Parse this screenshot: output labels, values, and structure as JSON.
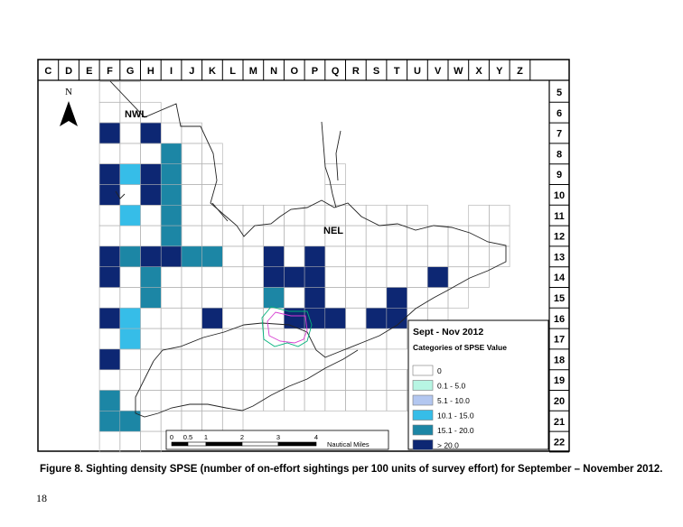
{
  "col_letters": [
    "C",
    "D",
    "E",
    "F",
    "G",
    "H",
    "I",
    "J",
    "K",
    "L",
    "M",
    "N",
    "O",
    "P",
    "Q",
    "R",
    "S",
    "T",
    "U",
    "V",
    "W",
    "X",
    "Y",
    "Z"
  ],
  "row_numbers": [
    "5",
    "6",
    "7",
    "8",
    "9",
    "10",
    "11",
    "12",
    "13",
    "14",
    "15",
    "16",
    "17",
    "18",
    "19",
    "20",
    "21",
    "22"
  ],
  "north_label": "N",
  "area_labels": {
    "nwl": "NWL",
    "nel": "NEL"
  },
  "legend": {
    "title": "Sept - Nov 2012",
    "subtitle": "Categories of SPSE Value",
    "categories": [
      {
        "label": "0",
        "color": "#ffffff"
      },
      {
        "label": "0.1 - 5.0",
        "color": "#b7f5e3"
      },
      {
        "label": "5.1 - 10.0",
        "color": "#b3c7f0"
      },
      {
        "label": "10.1 - 15.0",
        "color": "#36bde8"
      },
      {
        "label": "15.1 - 20.0",
        "color": "#1c86a5"
      },
      {
        "label": "> 20.0",
        "color": "#0d2773"
      }
    ]
  },
  "scale_bar": {
    "ticks": [
      "0",
      "0.5",
      "1",
      "2",
      "3",
      "4"
    ],
    "unit": "Nautical Miles"
  },
  "caption": "Figure 8. Sighting density SPSE (number of on-effort sightings per 100 units of survey effort) for September – November 2012.",
  "page_number": "18",
  "grid_cells": [
    {
      "col": "F",
      "row": 7,
      "cat": 5
    },
    {
      "col": "H",
      "row": 7,
      "cat": 5
    },
    {
      "col": "I",
      "row": 8,
      "cat": 4
    },
    {
      "col": "F",
      "row": 9,
      "cat": 5
    },
    {
      "col": "G",
      "row": 9,
      "cat": 3
    },
    {
      "col": "H",
      "row": 9,
      "cat": 5
    },
    {
      "col": "I",
      "row": 9,
      "cat": 4
    },
    {
      "col": "F",
      "row": 10,
      "cat": 5
    },
    {
      "col": "H",
      "row": 10,
      "cat": 5
    },
    {
      "col": "I",
      "row": 10,
      "cat": 4
    },
    {
      "col": "G",
      "row": 11,
      "cat": 3
    },
    {
      "col": "I",
      "row": 11,
      "cat": 4
    },
    {
      "col": "I",
      "row": 12,
      "cat": 4
    },
    {
      "col": "F",
      "row": 13,
      "cat": 5
    },
    {
      "col": "G",
      "row": 13,
      "cat": 4
    },
    {
      "col": "H",
      "row": 13,
      "cat": 5
    },
    {
      "col": "I",
      "row": 13,
      "cat": 5
    },
    {
      "col": "J",
      "row": 13,
      "cat": 4
    },
    {
      "col": "K",
      "row": 13,
      "cat": 4
    },
    {
      "col": "N",
      "row": 13,
      "cat": 5
    },
    {
      "col": "P",
      "row": 13,
      "cat": 5
    },
    {
      "col": "F",
      "row": 14,
      "cat": 5
    },
    {
      "col": "H",
      "row": 14,
      "cat": 4
    },
    {
      "col": "N",
      "row": 14,
      "cat": 5
    },
    {
      "col": "O",
      "row": 14,
      "cat": 5
    },
    {
      "col": "P",
      "row": 14,
      "cat": 5
    },
    {
      "col": "V",
      "row": 14,
      "cat": 5
    },
    {
      "col": "H",
      "row": 15,
      "cat": 4
    },
    {
      "col": "N",
      "row": 15,
      "cat": 4
    },
    {
      "col": "P",
      "row": 15,
      "cat": 5
    },
    {
      "col": "T",
      "row": 15,
      "cat": 5
    },
    {
      "col": "F",
      "row": 16,
      "cat": 5
    },
    {
      "col": "G",
      "row": 16,
      "cat": 3
    },
    {
      "col": "K",
      "row": 16,
      "cat": 5
    },
    {
      "col": "O",
      "row": 16,
      "cat": 5
    },
    {
      "col": "P",
      "row": 16,
      "cat": 5
    },
    {
      "col": "Q",
      "row": 16,
      "cat": 5
    },
    {
      "col": "S",
      "row": 16,
      "cat": 5
    },
    {
      "col": "T",
      "row": 16,
      "cat": 5
    },
    {
      "col": "G",
      "row": 17,
      "cat": 3
    },
    {
      "col": "F",
      "row": 18,
      "cat": 5
    },
    {
      "col": "F",
      "row": 20,
      "cat": 4
    },
    {
      "col": "F",
      "row": 21,
      "cat": 4
    },
    {
      "col": "G",
      "row": 21,
      "cat": 4
    }
  ],
  "outline_cells": {
    "5": [
      "F",
      "G"
    ],
    "6": [
      "F",
      "G",
      "H"
    ],
    "7": [
      "F",
      "G",
      "H",
      "I",
      "J"
    ],
    "8": [
      "F",
      "G",
      "H",
      "I",
      "J",
      "K"
    ],
    "9": [
      "F",
      "G",
      "H",
      "I",
      "J",
      "K",
      "Q"
    ],
    "10": [
      "F",
      "G",
      "H",
      "I",
      "J",
      "K",
      "Q"
    ],
    "11": [
      "F",
      "G",
      "H",
      "I",
      "J",
      "K",
      "L",
      "M",
      "N",
      "O",
      "P",
      "Q",
      "R",
      "S",
      "T",
      "U",
      "X",
      "Y"
    ],
    "12": [
      "F",
      "G",
      "H",
      "I",
      "J",
      "K",
      "L",
      "M",
      "N",
      "O",
      "P",
      "Q",
      "R",
      "S",
      "T",
      "U",
      "V",
      "W",
      "X",
      "Y"
    ],
    "13": [
      "F",
      "G",
      "H",
      "I",
      "J",
      "K",
      "L",
      "M",
      "N",
      "O",
      "P",
      "Q",
      "R",
      "S",
      "T",
      "U",
      "V",
      "W",
      "X",
      "Y"
    ],
    "14": [
      "F",
      "G",
      "H",
      "I",
      "J",
      "K",
      "L",
      "M",
      "N",
      "O",
      "P",
      "Q",
      "R",
      "S",
      "T",
      "U",
      "V",
      "W",
      "X"
    ],
    "15": [
      "F",
      "G",
      "H",
      "I",
      "J",
      "K",
      "L",
      "M",
      "N",
      "O",
      "P",
      "Q",
      "R",
      "S",
      "T",
      "U",
      "V",
      "W"
    ],
    "16": [
      "F",
      "G",
      "H",
      "I",
      "J",
      "K",
      "L",
      "M",
      "N",
      "O",
      "P",
      "Q",
      "R",
      "S",
      "T",
      "U",
      "V"
    ],
    "17": [
      "F",
      "G",
      "H",
      "I",
      "J",
      "K",
      "L",
      "M",
      "N",
      "O",
      "P",
      "Q",
      "R",
      "S",
      "T"
    ],
    "18": [
      "F",
      "G",
      "H",
      "I",
      "J",
      "K",
      "L",
      "M",
      "N",
      "O",
      "P",
      "Q",
      "R",
      "S"
    ],
    "19": [
      "F",
      "G",
      "H",
      "I",
      "J",
      "K",
      "L",
      "M",
      "N",
      "O",
      "P",
      "Q",
      "R",
      "S",
      "T",
      "U"
    ],
    "20": [
      "F",
      "G",
      "H",
      "I",
      "J",
      "K",
      "L",
      "M",
      "N",
      "O",
      "P",
      "Q",
      "R",
      "S",
      "T",
      "U"
    ],
    "21": [
      "F",
      "G",
      "H",
      "I",
      "J",
      "K",
      "L"
    ],
    "22": [
      "F",
      "G",
      "H"
    ]
  }
}
